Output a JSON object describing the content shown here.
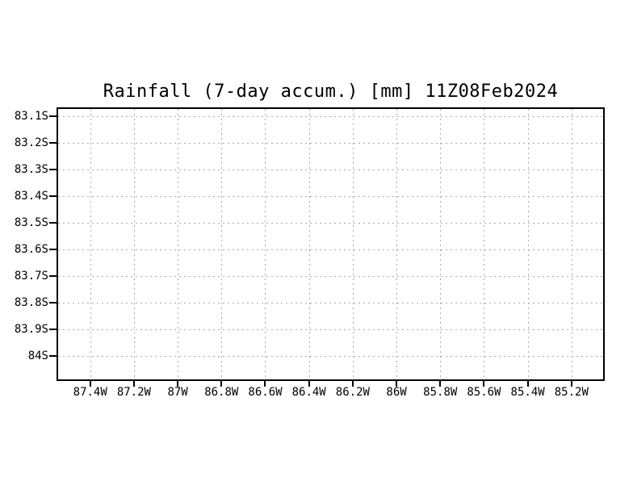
{
  "page": {
    "background_color": "#ffffff"
  },
  "chart_data": {
    "type": "scatter",
    "title": "Rainfall (7-day accum.) [mm] 11Z08Feb2024",
    "xlabel": "",
    "ylabel": "",
    "series": [],
    "plot_area_content": "empty - no rainfall values or shading drawn inside the frame",
    "x_axis": {
      "unit": "degrees West longitude",
      "tick_values": [
        87.4,
        87.2,
        87.0,
        86.8,
        86.6,
        86.4,
        86.2,
        86.0,
        85.8,
        85.6,
        85.4,
        85.2
      ],
      "tick_labels": [
        "87.4W",
        "87.2W",
        "87W",
        "86.8W",
        "86.6W",
        "86.4W",
        "86.2W",
        "86W",
        "85.8W",
        "85.6W",
        "85.4W",
        "85.2W"
      ],
      "left_edge_value": 87.554,
      "right_edge_value": 85.048
    },
    "y_axis": {
      "unit": "degrees South latitude",
      "tick_values": [
        83.1,
        83.2,
        83.3,
        83.4,
        83.5,
        83.6,
        83.7,
        83.8,
        83.9,
        84.0
      ],
      "tick_labels": [
        "83.1S",
        "83.2S",
        "83.3S",
        "83.4S",
        "83.5S",
        "83.6S",
        "83.7S",
        "83.8S",
        "83.9S",
        "84S"
      ],
      "top_edge_value": 83.067,
      "bottom_edge_value": 84.093
    },
    "grid": {
      "visible": true,
      "style": "dotted",
      "color": "#aaaaaa"
    },
    "frame": {
      "color": "#000000",
      "thickness_px": 2
    },
    "legend": "none"
  }
}
